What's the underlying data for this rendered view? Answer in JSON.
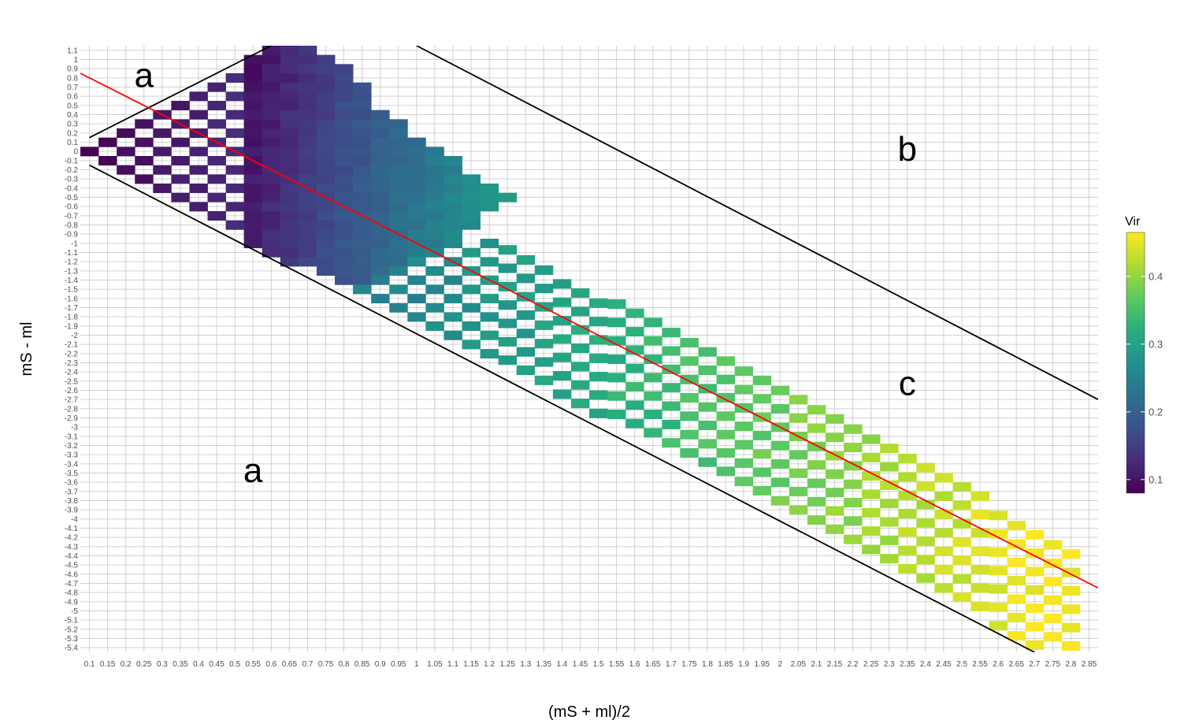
{
  "chart_data": {
    "type": "heatmap",
    "xlabel": "(mS + ml)/2",
    "ylabel": "mS - ml",
    "x_ticks": [
      0.1,
      0.15,
      0.2,
      0.25,
      0.3,
      0.35,
      0.4,
      0.45,
      0.5,
      0.55,
      0.6,
      0.65,
      0.7,
      0.75,
      0.8,
      0.85,
      0.9,
      0.95,
      1,
      1.05,
      1.1,
      1.15,
      1.2,
      1.25,
      1.3,
      1.35,
      1.4,
      1.45,
      1.5,
      1.55,
      1.6,
      1.65,
      1.7,
      1.75,
      1.8,
      1.85,
      1.9,
      1.95,
      2,
      2.05,
      2.1,
      2.15,
      2.2,
      2.25,
      2.3,
      2.35,
      2.4,
      2.45,
      2.5,
      2.55,
      2.6,
      2.65,
      2.7,
      2.75,
      2.8,
      2.85
    ],
    "y_ticks": [
      1.1,
      1,
      0.9,
      0.8,
      0.7,
      0.6,
      0.5,
      0.4,
      0.3,
      0.2,
      0.1,
      0,
      -0.1,
      -0.2,
      -0.3,
      -0.4,
      -0.5,
      -0.6,
      -0.7,
      -0.8,
      -0.9,
      -1,
      -1.1,
      -1.2,
      -1.3,
      -1.4,
      -1.5,
      -1.6,
      -1.7,
      -1.8,
      -1.9,
      -2,
      -2.1,
      -2.2,
      -2.3,
      -2.4,
      -2.5,
      -2.6,
      -2.7,
      -2.8,
      -2.9,
      -3,
      -3.1,
      -3.2,
      -3.3,
      -3.4,
      -3.5,
      -3.6,
      -3.7,
      -3.8,
      -3.9,
      -4,
      -4.1,
      -4.2,
      -4.3,
      -4.4,
      -4.5,
      -4.6,
      -4.7,
      -4.8,
      -4.9,
      -5,
      -5.1,
      -5.2,
      -5.3,
      -5.4
    ],
    "xlim": [
      0.075,
      2.875
    ],
    "ylim": [
      -5.45,
      1.15
    ],
    "grid": true,
    "cells": [
      {
        "region": "checker",
        "x": [
          0.1,
          0.55
        ],
        "y": [
          -0.9,
          1
        ],
        "v_start": 0.08,
        "v_end": 0.13
      },
      {
        "region": "dense",
        "x": [
          0.55,
          1.25
        ],
        "v_start": 0.1,
        "v_end": 0.34,
        "columns": [
          {
            "x": 0.55,
            "y": [
              -1,
              1
            ]
          },
          {
            "x": 0.6,
            "y": [
              -1.1,
              1.1
            ]
          },
          {
            "x": 0.65,
            "y": [
              -1.2,
              1.1
            ]
          },
          {
            "x": 0.7,
            "y": [
              -1.2,
              1.1
            ]
          },
          {
            "x": 0.75,
            "y": [
              -1.3,
              1
            ]
          },
          {
            "x": 0.8,
            "y": [
              -1.4,
              0.9
            ]
          },
          {
            "x": 0.85,
            "y": [
              -1.4,
              0.7
            ]
          },
          {
            "x": 0.9,
            "y": [
              -1.3,
              0.4
            ]
          },
          {
            "x": 0.95,
            "y": [
              -1.2,
              0.3
            ]
          },
          {
            "x": 1,
            "y": [
              -1.1,
              0.1
            ]
          },
          {
            "x": 1.05,
            "y": [
              -1.0,
              0.0
            ]
          },
          {
            "x": 1.1,
            "y": [
              -0.9,
              -0.1
            ]
          },
          {
            "x": 1.15,
            "y": [
              -0.8,
              -0.3
            ]
          },
          {
            "x": 1.2,
            "y": [
              -0.6,
              -0.4
            ]
          },
          {
            "x": 1.25,
            "y": [
              -0.5,
              -0.5
            ]
          }
        ]
      },
      {
        "region": "band",
        "x": [
          0.85,
          2.8
        ],
        "v_start": 0.24,
        "v_end": 0.46
      }
    ],
    "lines": [
      {
        "color": "#000000",
        "x": [
          0.1,
          0.6
        ],
        "y": [
          0.15,
          1.15
        ]
      },
      {
        "color": "#000000",
        "x": [
          0.1,
          2.7
        ],
        "y": [
          -0.15,
          -5.45
        ]
      },
      {
        "color": "#000000",
        "x": [
          1.0,
          2.875
        ],
        "y": [
          1.15,
          -2.7
        ]
      },
      {
        "color": "#ff0000",
        "x": [
          0.075,
          2.875
        ],
        "y": [
          0.85,
          -4.75
        ]
      }
    ],
    "annotations": [
      {
        "text": "a",
        "x": 0.25,
        "y": 0.8
      },
      {
        "text": "b",
        "x": 2.35,
        "y": 0.0
      },
      {
        "text": "c",
        "x": 2.35,
        "y": -2.55
      },
      {
        "text": "a",
        "x": 0.55,
        "y": -3.5
      }
    ],
    "legend": {
      "title": "Vir",
      "placement": "right",
      "range": [
        0.08,
        0.465
      ],
      "ticks": [
        0.1,
        0.2,
        0.3,
        0.4
      ]
    }
  }
}
